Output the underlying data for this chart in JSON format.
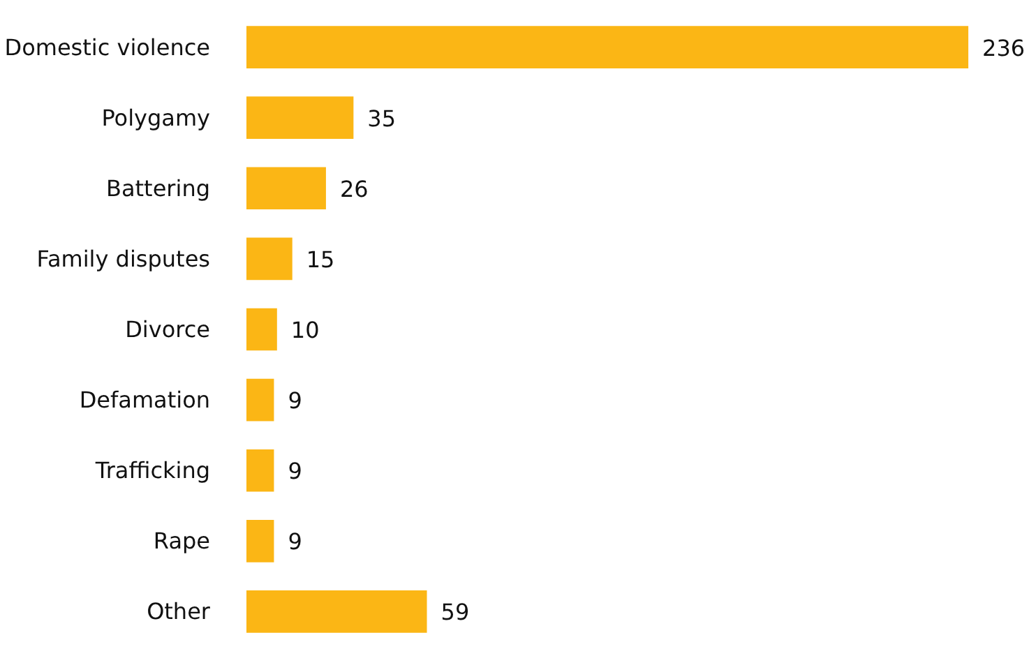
{
  "chart_data": {
    "type": "bar",
    "orientation": "horizontal",
    "categories": [
      "Domestic violence",
      "Polygamy",
      "Battering",
      "Family disputes",
      "Divorce",
      "Defamation",
      "Trafficking",
      "Rape",
      "Other"
    ],
    "values": [
      236,
      35,
      26,
      15,
      10,
      9,
      9,
      9,
      59
    ],
    "color": "#fbb615",
    "data_labels": true
  }
}
